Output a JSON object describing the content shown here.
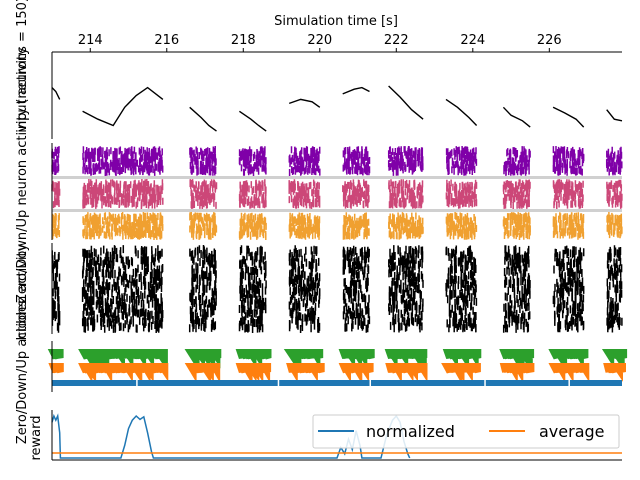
{
  "chart_data": {
    "type": "line",
    "xlabel": "Simulation time [s]",
    "xlim": [
      213.0,
      227.9
    ],
    "x_ticks": [
      214,
      216,
      218,
      220,
      222,
      224,
      226
    ],
    "active_windows": [
      [
        213.0,
        213.2
      ],
      [
        213.8,
        215.9
      ],
      [
        216.6,
        217.3
      ],
      [
        217.9,
        218.6
      ],
      [
        219.2,
        220.0
      ],
      [
        220.6,
        221.3
      ],
      [
        221.8,
        222.7
      ],
      [
        223.3,
        224.1
      ],
      [
        224.8,
        225.5
      ],
      [
        226.1,
        226.9
      ],
      [
        227.5,
        227.9
      ]
    ],
    "panels": {
      "input": {
        "ylabel": "input activity",
        "segments": [
          {
            "x": [
              213.0,
              213.1,
              213.2
            ],
            "y": [
              0.6,
              0.55,
              0.45
            ]
          },
          {
            "x": [
              213.8,
              214.2,
              214.6,
              214.9,
              215.2,
              215.5,
              215.9
            ],
            "y": [
              0.3,
              0.2,
              0.12,
              0.35,
              0.5,
              0.6,
              0.45
            ]
          },
          {
            "x": [
              216.6,
              216.9,
              217.1,
              217.3
            ],
            "y": [
              0.35,
              0.22,
              0.12,
              0.05
            ]
          },
          {
            "x": [
              217.9,
              218.2,
              218.4,
              218.6
            ],
            "y": [
              0.3,
              0.2,
              0.12,
              0.05
            ]
          },
          {
            "x": [
              219.2,
              219.5,
              219.8,
              220.0
            ],
            "y": [
              0.4,
              0.45,
              0.42,
              0.35
            ]
          },
          {
            "x": [
              220.6,
              220.9,
              221.1,
              221.3
            ],
            "y": [
              0.52,
              0.58,
              0.6,
              0.55
            ]
          },
          {
            "x": [
              221.8,
              222.1,
              222.4,
              222.7
            ],
            "y": [
              0.62,
              0.48,
              0.32,
              0.2
            ]
          },
          {
            "x": [
              223.3,
              223.6,
              223.9,
              224.1
            ],
            "y": [
              0.45,
              0.35,
              0.22,
              0.12
            ]
          },
          {
            "x": [
              224.8,
              225.0,
              225.3,
              225.5
            ],
            "y": [
              0.35,
              0.25,
              0.18,
              0.1
            ]
          },
          {
            "x": [
              226.1,
              226.4,
              226.7,
              226.9
            ],
            "y": [
              0.35,
              0.28,
              0.2,
              0.1
            ]
          },
          {
            "x": [
              227.5,
              227.7,
              227.9
            ],
            "y": [
              0.32,
              0.2,
              0.18
            ]
          }
        ]
      },
      "neurons": {
        "ylabel": "Zero/Down/Up neuron activity (neurons = 150)",
        "series": [
          {
            "name": "Zero",
            "color": "#7f00a8"
          },
          {
            "name": "Down",
            "color": "#cc4778"
          },
          {
            "name": "Up",
            "color": "#f0a030"
          }
        ]
      },
      "hidden": {
        "ylabel": "hidden activity",
        "color": "#000000"
      },
      "actions": {
        "ylabel": "Zero/Down/Up actions",
        "series": [
          {
            "name": "Zero",
            "color": "#2ca02c"
          },
          {
            "name": "Down",
            "color": "#ff7f0e"
          },
          {
            "name": "Up",
            "color": "#1f77b4"
          }
        ]
      },
      "reward": {
        "ylabel": "reward",
        "series": [
          {
            "name": "normalized",
            "color": "#1f77b4",
            "x": [
              213.0,
              213.05,
              213.1,
              213.15,
              213.2,
              213.22,
              214.8,
              214.9,
              215.0,
              215.1,
              215.2,
              215.3,
              215.4,
              215.5,
              215.6,
              215.65,
              220.45,
              220.55,
              220.65,
              220.75,
              220.85,
              220.95,
              221.05,
              221.1,
              221.6,
              221.75,
              221.9,
              222.0,
              222.1,
              222.2,
              222.3,
              222.35
            ],
            "y": [
              0.85,
              1.0,
              0.9,
              1.0,
              0.6,
              0.0,
              0.0,
              0.3,
              0.7,
              0.9,
              1.0,
              0.92,
              0.98,
              0.6,
              0.15,
              0.0,
              0.0,
              0.25,
              0.1,
              0.45,
              0.2,
              0.65,
              0.3,
              0.0,
              0.0,
              0.55,
              0.9,
              1.0,
              0.85,
              0.4,
              0.1,
              0.0
            ]
          },
          {
            "name": "average",
            "color": "#ff7f0e",
            "x": [
              213.0,
              227.9
            ],
            "y": [
              0.12,
              0.12
            ]
          }
        ]
      }
    }
  }
}
